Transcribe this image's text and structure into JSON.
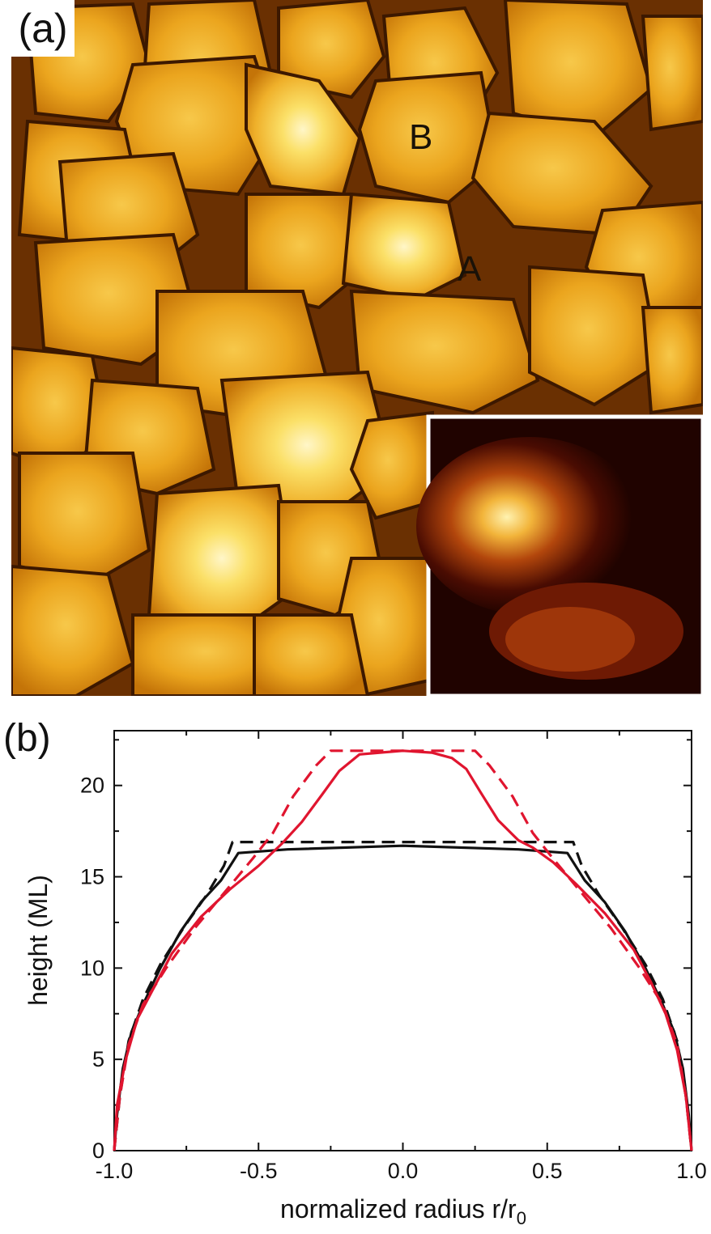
{
  "panel_a": {
    "label": "(a)",
    "island_labels": [
      "B",
      "A"
    ],
    "colors": {
      "background": "#5a2600",
      "island_dark": "#c07008",
      "island_mid": "#eba51e",
      "island_light": "#fbe068",
      "highlight": "#fff6c8",
      "inset_background": "#200300"
    }
  },
  "panel_b": {
    "label": "(b)",
    "chart_data": {
      "type": "line",
      "xlabel": "normalized radius r/r",
      "xlabel_subscript": "0",
      "ylabel": "height (ML)",
      "xlim": [
        -1.0,
        1.0
      ],
      "ylim": [
        0,
        23
      ],
      "x_ticks": [
        "-1.0",
        "-0.5",
        "0.0",
        "0.5",
        "1.0"
      ],
      "y_ticks": [
        "0",
        "5",
        "10",
        "15",
        "20"
      ],
      "grid": false,
      "series": [
        {
          "color": "#111111",
          "dash": "solid",
          "points": [
            [
              -1.0,
              0
            ],
            [
              -0.99,
              2
            ],
            [
              -0.97,
              4.5
            ],
            [
              -0.94,
              6.5
            ],
            [
              -0.9,
              8
            ],
            [
              -0.84,
              10
            ],
            [
              -0.77,
              12
            ],
            [
              -0.7,
              13.6
            ],
            [
              -0.63,
              14.8
            ],
            [
              -0.57,
              16.3
            ],
            [
              -0.4,
              16.5
            ],
            [
              0.0,
              16.7
            ],
            [
              0.4,
              16.5
            ],
            [
              0.57,
              16.3
            ],
            [
              0.63,
              14.8
            ],
            [
              0.7,
              13.6
            ],
            [
              0.77,
              12
            ],
            [
              0.84,
              10
            ],
            [
              0.9,
              8
            ],
            [
              0.94,
              6.5
            ],
            [
              0.97,
              4.5
            ],
            [
              0.99,
              2
            ],
            [
              1.0,
              0
            ]
          ]
        },
        {
          "color": "#111111",
          "dash": "dashed",
          "points": [
            [
              -1.0,
              0
            ],
            [
              -0.98,
              3
            ],
            [
              -0.95,
              6
            ],
            [
              -0.9,
              8.3
            ],
            [
              -0.84,
              10.2
            ],
            [
              -0.76,
              12.2
            ],
            [
              -0.68,
              14
            ],
            [
              -0.62,
              15.6
            ],
            [
              -0.59,
              16.9
            ],
            [
              0.0,
              16.9
            ],
            [
              0.59,
              16.9
            ],
            [
              0.62,
              15.6
            ],
            [
              0.68,
              14
            ],
            [
              0.76,
              12.2
            ],
            [
              0.84,
              10.2
            ],
            [
              0.9,
              8.3
            ],
            [
              0.95,
              6
            ],
            [
              0.98,
              3
            ],
            [
              1.0,
              0
            ]
          ]
        },
        {
          "color": "#e0152f",
          "dash": "solid",
          "points": [
            [
              -1.0,
              0
            ],
            [
              -0.99,
              2.5
            ],
            [
              -0.96,
              5
            ],
            [
              -0.92,
              7.2
            ],
            [
              -0.86,
              9
            ],
            [
              -0.8,
              10.8
            ],
            [
              -0.7,
              12.8
            ],
            [
              -0.6,
              14.3
            ],
            [
              -0.5,
              15.6
            ],
            [
              -0.42,
              16.8
            ],
            [
              -0.35,
              18
            ],
            [
              -0.28,
              19.5
            ],
            [
              -0.22,
              20.8
            ],
            [
              -0.15,
              21.7
            ],
            [
              -0.08,
              21.8
            ],
            [
              0.0,
              21.9
            ],
            [
              0.1,
              21.8
            ],
            [
              0.17,
              21.5
            ],
            [
              0.22,
              20.9
            ],
            [
              0.27,
              19.6
            ],
            [
              0.33,
              18.1
            ],
            [
              0.4,
              17
            ],
            [
              0.45,
              16.6
            ],
            [
              0.52,
              15.8
            ],
            [
              0.6,
              14.6
            ],
            [
              0.7,
              13
            ],
            [
              0.8,
              11
            ],
            [
              0.86,
              9.2
            ],
            [
              0.91,
              7.5
            ],
            [
              0.95,
              5.5
            ],
            [
              0.98,
              3
            ],
            [
              1.0,
              0
            ]
          ]
        },
        {
          "color": "#e0152f",
          "dash": "dashed",
          "points": [
            [
              -1.0,
              0
            ],
            [
              -0.98,
              3
            ],
            [
              -0.95,
              5.8
            ],
            [
              -0.9,
              8
            ],
            [
              -0.82,
              10
            ],
            [
              -0.72,
              12.2
            ],
            [
              -0.62,
              14.1
            ],
            [
              -0.52,
              16
            ],
            [
              -0.45,
              17.4
            ],
            [
              -0.38,
              19.4
            ],
            [
              -0.3,
              21.1
            ],
            [
              -0.25,
              21.9
            ],
            [
              0.0,
              21.9
            ],
            [
              0.25,
              21.9
            ],
            [
              0.3,
              21.1
            ],
            [
              0.38,
              19.4
            ],
            [
              0.45,
              17.4
            ],
            [
              0.52,
              16
            ],
            [
              0.62,
              14.1
            ],
            [
              0.72,
              12.2
            ],
            [
              0.82,
              10
            ],
            [
              0.9,
              8
            ],
            [
              0.95,
              5.8
            ],
            [
              0.98,
              3
            ],
            [
              1.0,
              0
            ]
          ]
        }
      ]
    }
  }
}
